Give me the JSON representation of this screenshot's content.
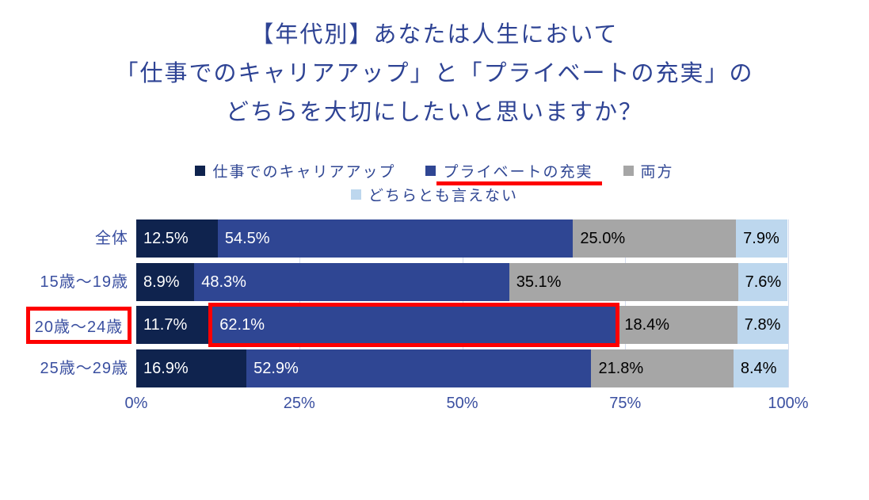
{
  "title": {
    "lines": [
      "【年代別】あなたは人生において",
      "「仕事でのキャリアアップ」と「プライベートの充実」の",
      "どちらを大切にしたいと思いますか？"
    ]
  },
  "legend": {
    "rows": [
      [
        {
          "label": "仕事でのキャリアアップ",
          "color": "#0f234e",
          "underlined": false
        },
        {
          "label": "プライベートの充実",
          "color": "#2f4693",
          "underlined": true
        },
        {
          "label": "両方",
          "color": "#a6a6a6",
          "underlined": false
        }
      ],
      [
        {
          "label": "どちらとも言えない",
          "color": "#bdd7ee",
          "underlined": false
        }
      ]
    ]
  },
  "chart_data": {
    "type": "bar",
    "orientation": "horizontal-stacked",
    "title": "【年代別】あなたは人生において「仕事でのキャリアアップ」と「プライベートの充実」のどちらを大切にしたいと思いますか？",
    "categories": [
      "全体",
      "15歳〜19歳",
      "20歳〜24歳",
      "25歳〜29歳"
    ],
    "series": [
      {
        "name": "仕事でのキャリアアップ",
        "color": "#0f234e",
        "text_color": "#ffffff",
        "values": [
          12.5,
          8.9,
          11.7,
          16.9
        ]
      },
      {
        "name": "プライベートの充実",
        "color": "#2f4693",
        "text_color": "#ffffff",
        "values": [
          54.5,
          48.3,
          62.1,
          52.9
        ]
      },
      {
        "name": "両方",
        "color": "#a6a6a6",
        "text_color": "#000000",
        "values": [
          25.0,
          35.1,
          18.4,
          21.8
        ]
      },
      {
        "name": "どちらとも言えない",
        "color": "#bdd7ee",
        "text_color": "#000000",
        "values": [
          7.9,
          7.6,
          7.8,
          8.4
        ]
      }
    ],
    "value_suffix": "%",
    "value_decimals": 1,
    "x_ticks": [
      "0%",
      "25%",
      "50%",
      "75%",
      "100%"
    ],
    "x_tick_values": [
      0,
      25,
      50,
      75,
      100
    ],
    "xlim": [
      0,
      100
    ],
    "gridline_values": [
      25,
      50,
      75,
      100
    ],
    "legend_position": "top",
    "annotations": {
      "highlight_color": "#fe0000",
      "legend_underlined_item": "プライベートの充実",
      "boxed_category_index": 2,
      "boxed_segment": {
        "category_index": 2,
        "series_index": 1
      }
    }
  }
}
